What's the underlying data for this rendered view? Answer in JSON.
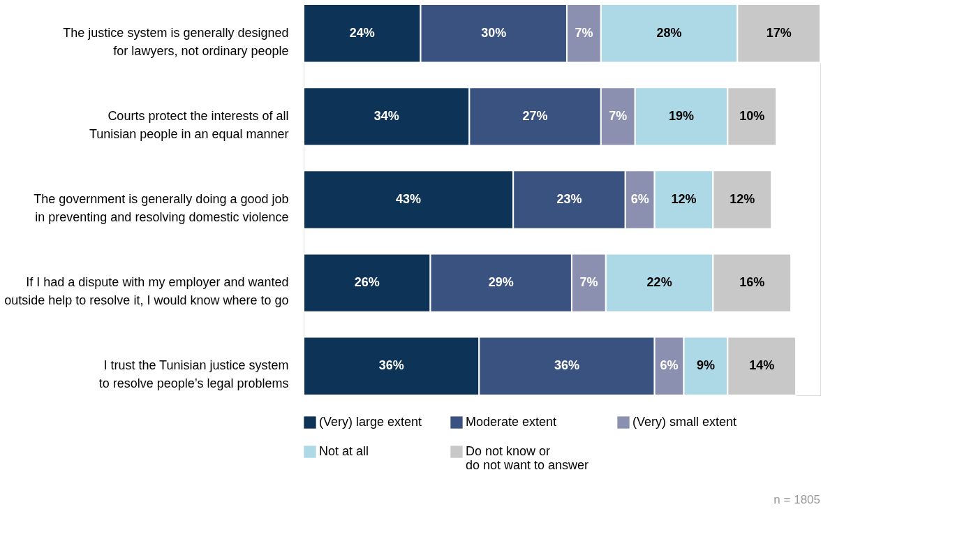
{
  "chart_data": {
    "type": "bar",
    "orientation": "horizontal",
    "stacked": true,
    "grid": false,
    "legend": "bottom",
    "tick_labels": "y",
    "categories": [
      "The justice system is generally designed\nfor lawyers, not ordinary people",
      "Courts protect the interests of all\nTunisian people in an equal manner",
      "The government is generally doing a good job\nin preventing and resolving domestic violence",
      "If I had a dispute with my employer and wanted\noutside help to resolve it, I would know where to go",
      "I trust the Tunisian justice system\nto resolve people’s legal problems"
    ],
    "series": [
      {
        "name": "(Very) large extent",
        "color": "#0d3356",
        "values": [
          24,
          34,
          43,
          26,
          36
        ],
        "value_labels": [
          "24%",
          "34%",
          "43%",
          "26%",
          "36%"
        ]
      },
      {
        "name": "Moderate extent",
        "color": "#3a5280",
        "values": [
          30,
          27,
          23,
          29,
          36
        ],
        "value_labels": [
          "30%",
          "27%",
          "23%",
          "29%",
          "36%"
        ]
      },
      {
        "name": "(Very) small extent",
        "color": "#8b8fb0",
        "values": [
          7,
          7,
          6,
          7,
          6
        ],
        "value_labels": [
          "7%",
          "7%",
          "6%",
          "7%",
          "6%"
        ]
      },
      {
        "name": "Not at all",
        "color": "#add8e6",
        "values": [
          28,
          19,
          12,
          22,
          9
        ],
        "value_labels": [
          "28%",
          "19%",
          "12%",
          "22%",
          "9%"
        ]
      },
      {
        "name": "Do not know or\ndo not want to answer",
        "color": "#c8c8c8",
        "values": [
          17,
          10,
          12,
          16,
          14
        ],
        "value_labels": [
          "17%",
          "10%",
          "12%",
          "16%",
          "14%"
        ]
      }
    ],
    "annotations": [
      "n = 1805"
    ]
  }
}
